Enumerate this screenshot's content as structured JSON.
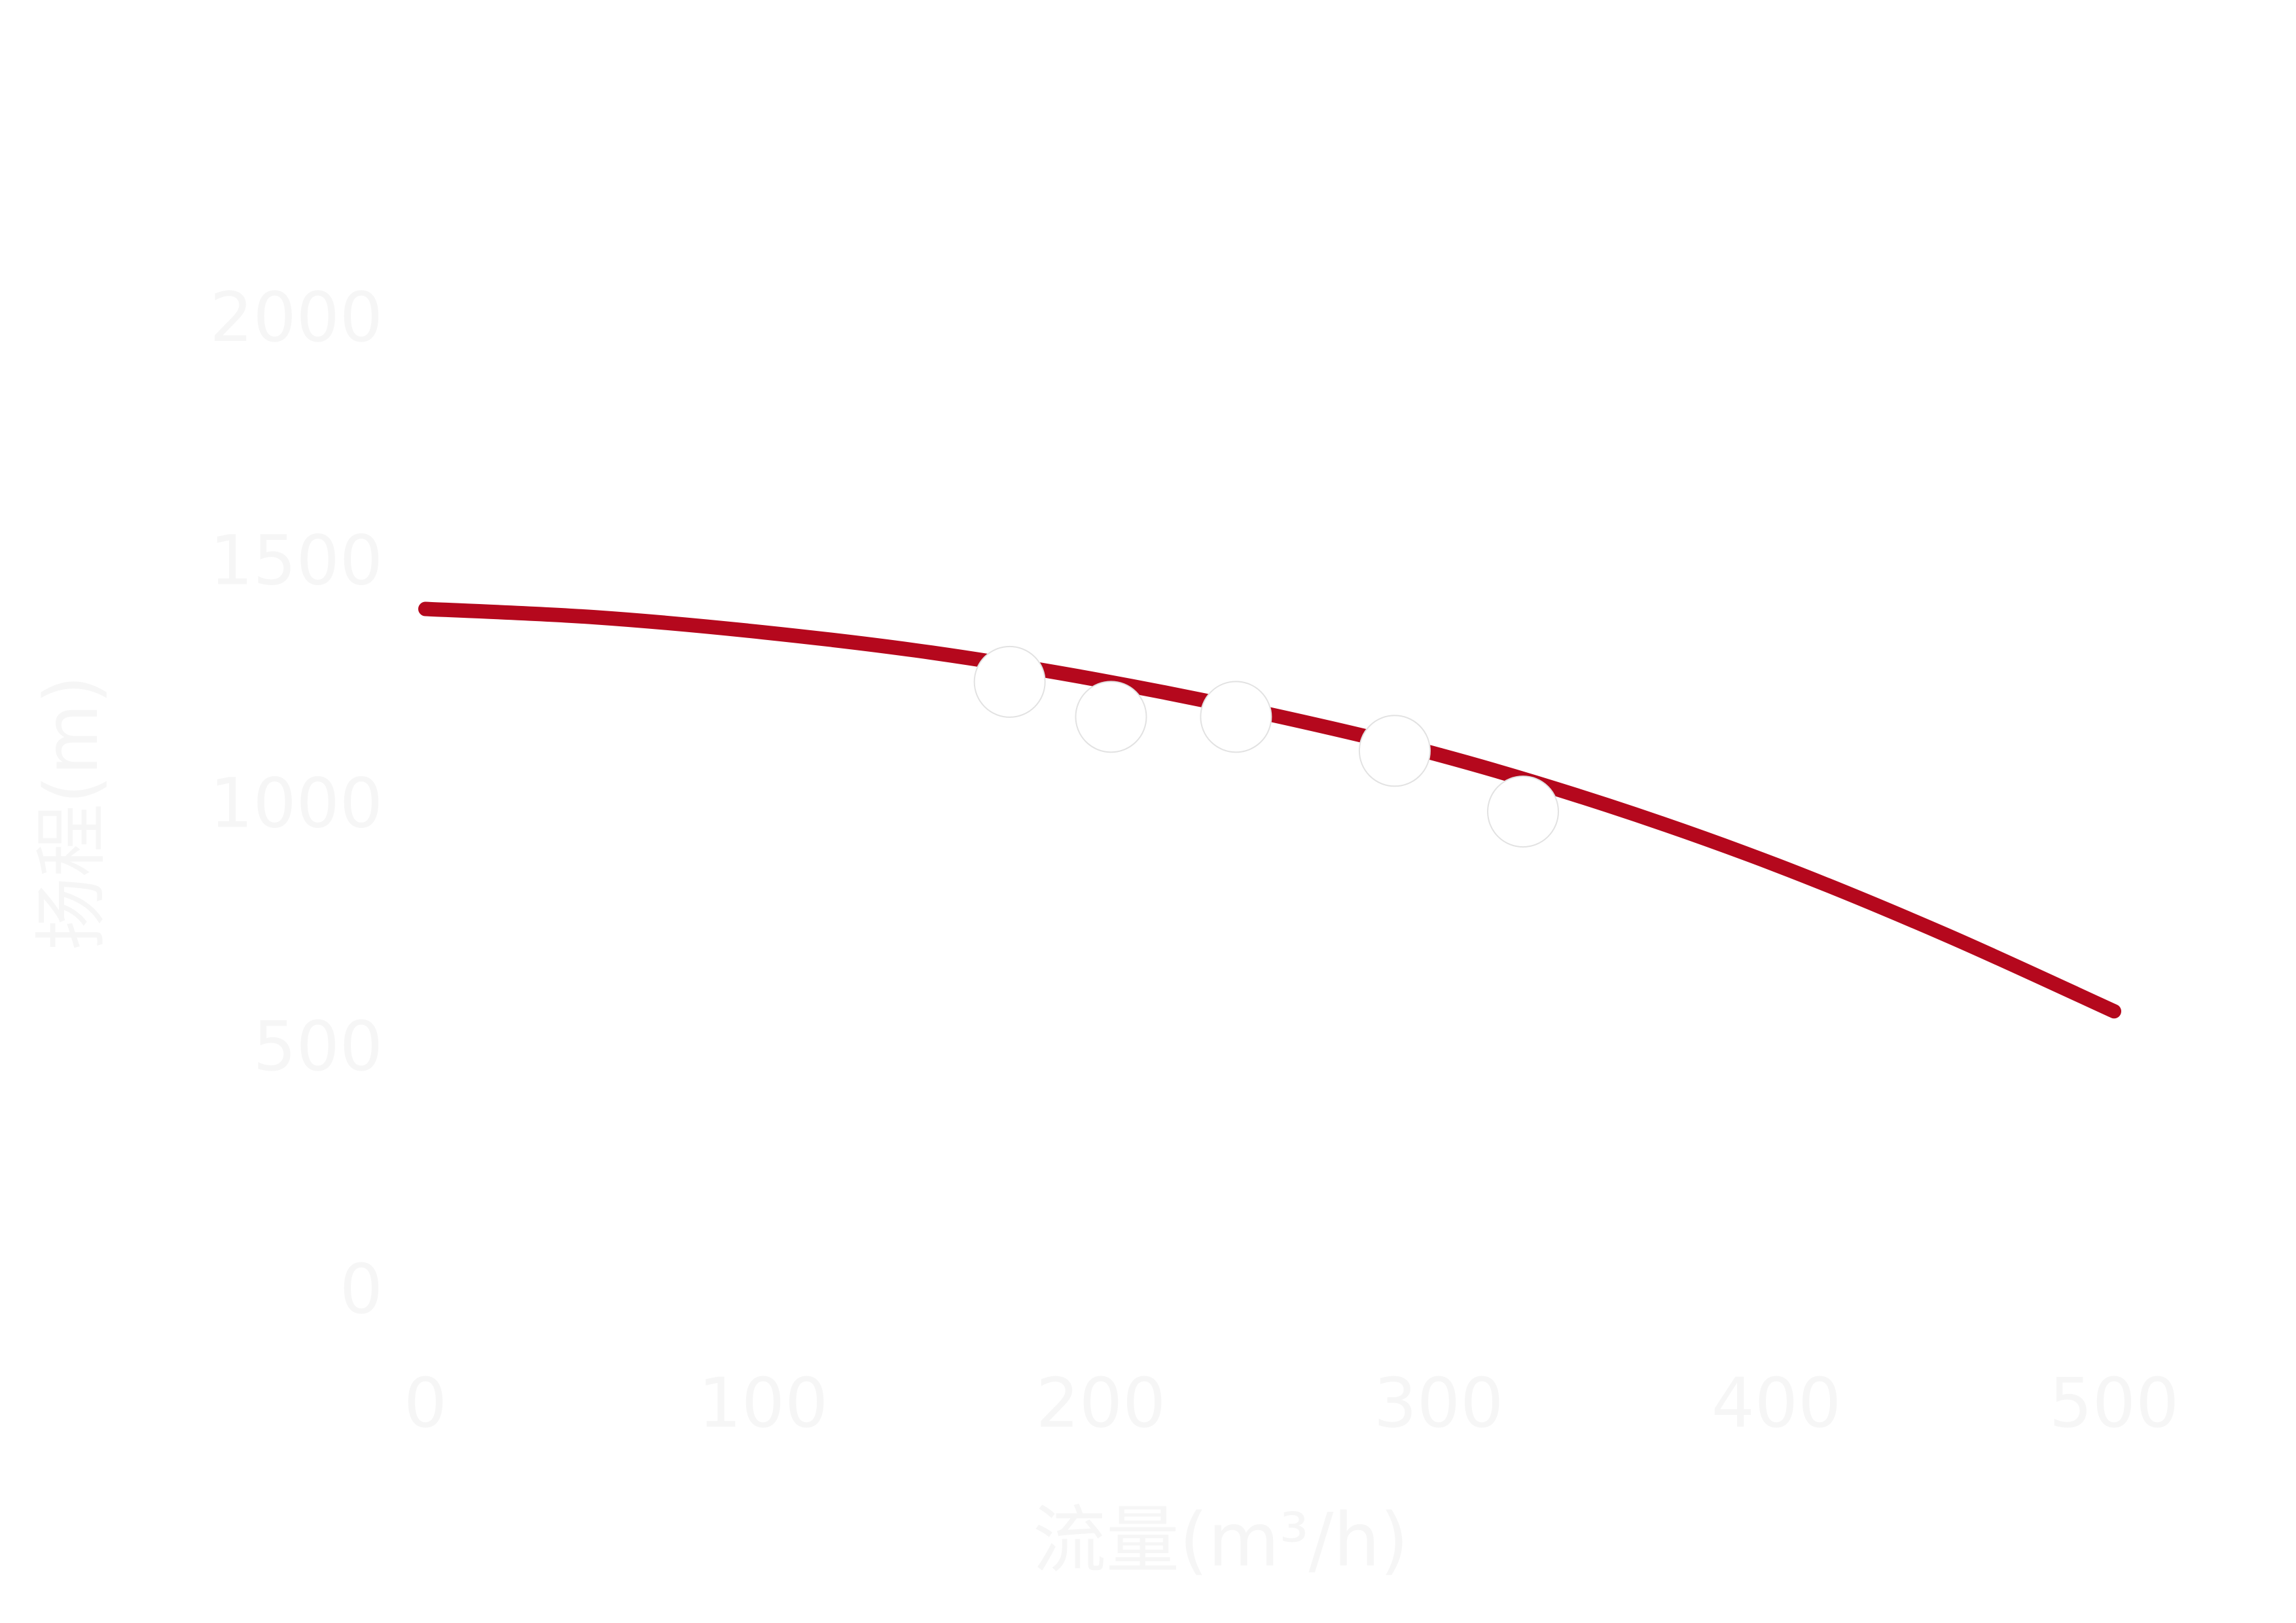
{
  "chart_data": {
    "type": "line",
    "title": "",
    "xlabel": "流量(m³/h)",
    "ylabel": "扬程(m)",
    "xlim": [
      0,
      500
    ],
    "ylim": [
      0,
      2000
    ],
    "x_ticks": [
      "0",
      "100",
      "200",
      "300",
      "400",
      "500"
    ],
    "y_ticks": [
      "0",
      "500",
      "1000",
      "1500",
      "2000"
    ],
    "grid": false,
    "legend": "none",
    "series": [
      {
        "color": "#b5081d",
        "x": [
          0,
          50,
          100,
          150,
          200,
          250,
          300,
          350,
          400,
          450,
          500
        ],
        "y": [
          1400,
          1383,
          1352,
          1310,
          1253,
          1183,
          1100,
          996,
          873,
          730,
          572
        ]
      }
    ],
    "markers": {
      "color": "#ffffff",
      "x": [
        173,
        203,
        240,
        287,
        325
      ],
      "y": [
        1250,
        1178,
        1178,
        1108,
        983
      ]
    }
  }
}
